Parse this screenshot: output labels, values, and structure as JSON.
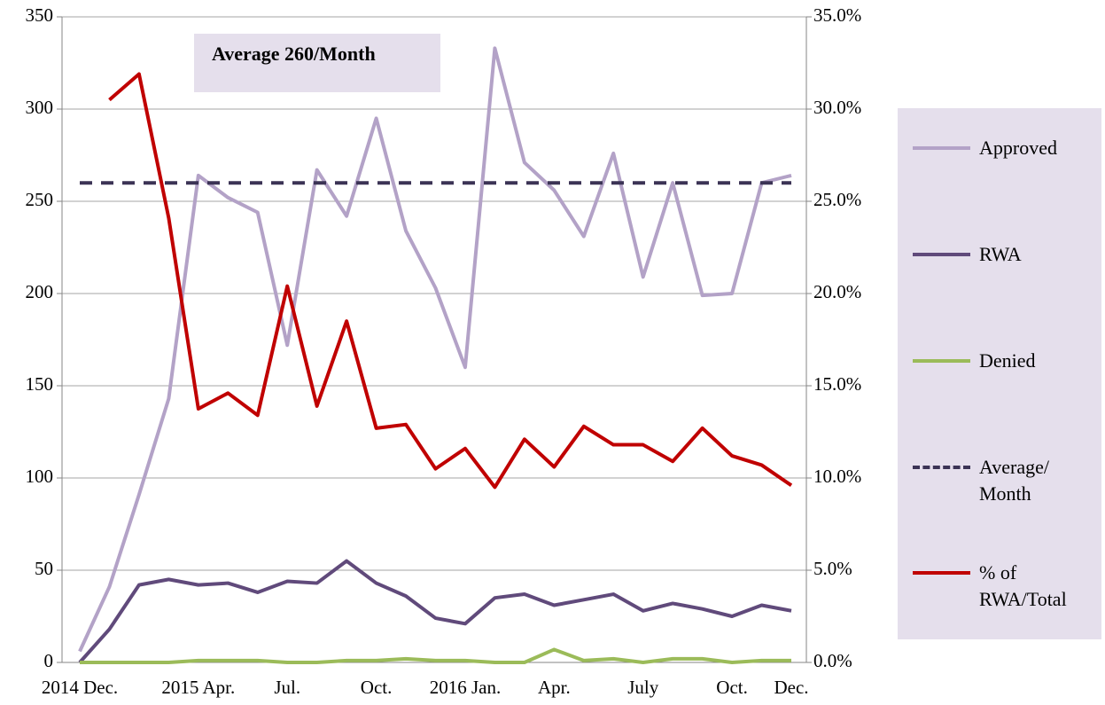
{
  "chart_data": {
    "type": "line",
    "annotation": "Average 260/Month",
    "categories": [
      "2014 Dec.",
      null,
      null,
      null,
      "2015 Apr.",
      null,
      null,
      "Jul.",
      null,
      null,
      "Oct.",
      null,
      null,
      "2016 Jan.",
      null,
      null,
      "Apr.",
      null,
      null,
      "July",
      null,
      null,
      "Oct.",
      null,
      "Dec."
    ],
    "ylim": [
      0,
      350
    ],
    "yticks": [
      0,
      50,
      100,
      150,
      200,
      250,
      300,
      350
    ],
    "y2lim": [
      0,
      35
    ],
    "y2ticks": [
      {
        "value": 0,
        "label": "0.0%"
      },
      {
        "value": 5,
        "label": "5.0%"
      },
      {
        "value": 10,
        "label": "10.0%"
      },
      {
        "value": 15,
        "label": "15.0%"
      },
      {
        "value": 20,
        "label": "20.0%"
      },
      {
        "value": 25,
        "label": "25.0%"
      },
      {
        "value": 30,
        "label": "30.0%"
      },
      {
        "value": 35,
        "label": "35.0%"
      }
    ],
    "grid": true,
    "series": [
      {
        "name": "Approved",
        "color": "#b3a2c7",
        "values": [
          6,
          41,
          91,
          143,
          264,
          252,
          244,
          172,
          267,
          242,
          295,
          234,
          203,
          160,
          333,
          271,
          256,
          231,
          276,
          209,
          260,
          199,
          200,
          260,
          264
        ]
      },
      {
        "name": "RWA",
        "color": "#604a7b",
        "values": [
          0,
          18,
          42,
          45,
          42,
          43,
          38,
          44,
          43,
          55,
          43,
          36,
          24,
          21,
          35,
          37,
          31,
          34,
          37,
          28,
          32,
          29,
          25,
          31,
          28
        ]
      },
      {
        "name": "Denied",
        "color": "#9bbb59",
        "values": [
          0,
          0,
          0,
          0,
          1,
          1,
          1,
          0,
          0,
          1,
          1,
          2,
          1,
          1,
          0,
          0,
          7,
          1,
          2,
          0,
          2,
          2,
          0,
          1,
          1
        ]
      },
      {
        "name": "Average/ Month",
        "color": "#3b3355",
        "dashed": true,
        "values": [
          260,
          260,
          260,
          260,
          260,
          260,
          260,
          260,
          260,
          260,
          260,
          260,
          260,
          260,
          260,
          260,
          260,
          260,
          260,
          260,
          260,
          260,
          260,
          260,
          260
        ]
      },
      {
        "name": "% of RWA/Total",
        "color": "#c00000",
        "axis": "y2",
        "values": [
          null,
          30.5,
          31.9,
          24.1,
          13.75,
          14.6,
          13.4,
          20.4,
          13.9,
          18.5,
          12.7,
          12.9,
          10.5,
          11.6,
          9.5,
          12.1,
          10.6,
          12.8,
          11.8,
          11.8,
          10.9,
          12.7,
          11.2,
          10.7,
          9.6
        ]
      }
    ]
  }
}
